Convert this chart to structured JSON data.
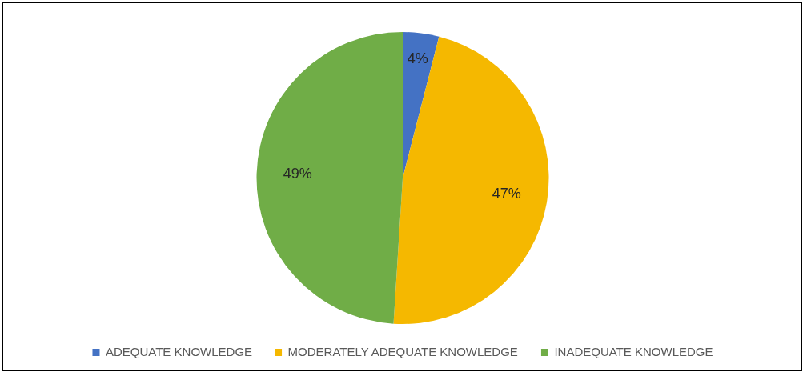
{
  "chart_data": {
    "type": "pie",
    "categories": [
      "ADEQUATE KNOWLEDGE",
      "MODERATELY ADEQUATE KNOWLEDGE",
      "INADEQUATE KNOWLEDGE"
    ],
    "values": [
      4,
      47,
      49
    ],
    "colors": [
      "#4472c4",
      "#f5b800",
      "#70ad47"
    ],
    "value_labels": [
      "4%",
      "47%",
      "49%"
    ],
    "legend": "bottom"
  }
}
